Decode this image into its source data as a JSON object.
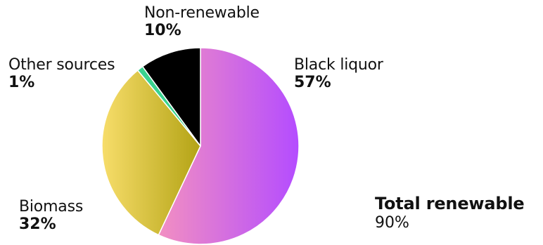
{
  "chart_data": {
    "type": "pie",
    "slices": [
      {
        "label": "Black liquor",
        "value": 57,
        "value_label": "57%",
        "colors": [
          "#f28fc2",
          "#b44cff"
        ]
      },
      {
        "label": "Biomass",
        "value": 32,
        "value_label": "32%",
        "colors": [
          "#f7dd6a",
          "#b3a315"
        ]
      },
      {
        "label": "Other sources",
        "value": 1,
        "value_label": "1%",
        "colors": [
          "#3ad38f",
          "#3ad38f"
        ]
      },
      {
        "label": "Non-renewable",
        "value": 10,
        "value_label": "10%",
        "colors": [
          "#000000",
          "#000000"
        ]
      }
    ],
    "start": "12 o'clock",
    "direction": "clockwise",
    "slice_border_color": "#ffffff",
    "summary": {
      "label": "Total renewable",
      "value": 90,
      "value_label": "90%"
    }
  }
}
